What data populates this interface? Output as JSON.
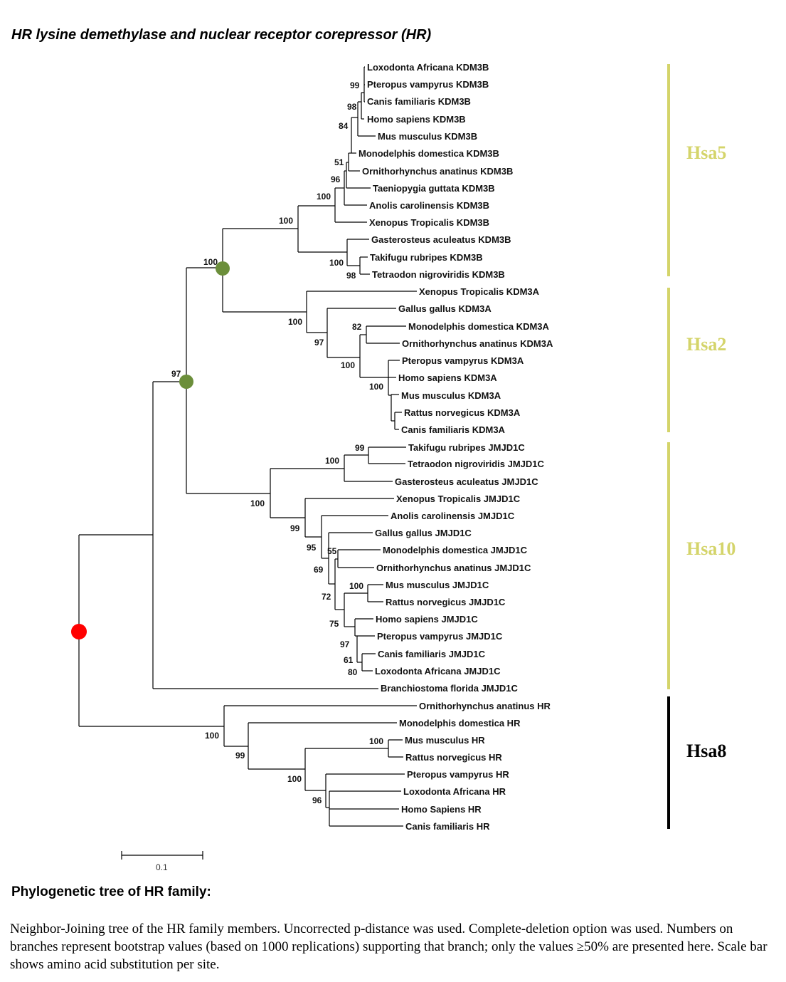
{
  "title": "HR lysine demethylase and nuclear receptor corepressor (HR)",
  "leaves": {
    "kdm3b_1": "Loxodonta Africana KDM3B",
    "kdm3b_2": "Pteropus vampyrus KDM3B",
    "kdm3b_3": "Canis familiaris KDM3B",
    "kdm3b_4": "Homo sapiens KDM3B",
    "kdm3b_5": "Mus musculus KDM3B",
    "kdm3b_6": "Monodelphis domestica KDM3B",
    "kdm3b_7": "Ornithorhynchus anatinus KDM3B",
    "kdm3b_8": "Taeniopygia guttata KDM3B",
    "kdm3b_9": "Anolis carolinensis KDM3B",
    "kdm3b_10": "Xenopus Tropicalis KDM3B",
    "kdm3b_11": "Gasterosteus aculeatus KDM3B",
    "kdm3b_12": "Takifugu rubripes KDM3B",
    "kdm3b_13": "Tetraodon nigroviridis KDM3B",
    "kdm3a_1": "Xenopus Tropicalis KDM3A",
    "kdm3a_2": "Gallus gallus KDM3A",
    "kdm3a_3": "Monodelphis domestica KDM3A",
    "kdm3a_4": "Ornithorhynchus anatinus KDM3A",
    "kdm3a_5": "Pteropus vampyrus KDM3A",
    "kdm3a_6": "Homo sapiens KDM3A",
    "kdm3a_7": "Mus musculus KDM3A",
    "kdm3a_8": "Rattus norvegicus KDM3A",
    "kdm3a_9": "Canis familiaris KDM3A",
    "jmjd1c_1": "Takifugu rubripes JMJD1C",
    "jmjd1c_2": "Tetraodon nigroviridis JMJD1C",
    "jmjd1c_3": "Gasterosteus aculeatus JMJD1C",
    "jmjd1c_4": "Xenopus Tropicalis JMJD1C",
    "jmjd1c_5": "Anolis carolinensis JMJD1C",
    "jmjd1c_6": "Gallus gallus JMJD1C",
    "jmjd1c_7": "Monodelphis domestica JMJD1C",
    "jmjd1c_8": "Ornithorhynchus anatinus JMJD1C",
    "jmjd1c_9": "Mus musculus JMJD1C",
    "jmjd1c_10": "Rattus norvegicus JMJD1C",
    "jmjd1c_11": "Homo sapiens JMJD1C",
    "jmjd1c_12": "Pteropus vampyrus JMJD1C",
    "jmjd1c_13": "Canis familiaris JMJD1C",
    "jmjd1c_14": "Loxodonta Africana JMJD1C",
    "jmjd1c_15": "Branchiostoma florida JMJD1C",
    "hr_1": "Ornithorhynchus anatinus HR",
    "hr_2": "Monodelphis domestica HR",
    "hr_3": "Mus musculus HR",
    "hr_4": "Rattus norvegicus HR",
    "hr_5": "Pteropus vampyrus HR",
    "hr_6": "Loxodonta Africana HR",
    "hr_7": "Homo Sapiens HR",
    "hr_8": "Canis familiaris HR"
  },
  "bootstrap": {
    "b1": "99",
    "b2": "98",
    "b3": "84",
    "b4": "51",
    "b5": "96",
    "b6": "100",
    "b7": "100",
    "b8": "100",
    "b9": "98",
    "b10": "100",
    "b11": "100",
    "b12": "97",
    "b13": "82",
    "b14": "100",
    "b15": "100",
    "b16": "97",
    "b17": "99",
    "b18": "100",
    "b19": "100",
    "b20": "99",
    "b21": "95",
    "b22": "55",
    "b23": "69",
    "b24": "100",
    "b25": "72",
    "b26": "75",
    "b27": "97",
    "b28": "61",
    "b29": "80",
    "b30": "100",
    "b31": "99",
    "b32": "100",
    "b33": "100",
    "b34": "96"
  },
  "groups": [
    {
      "label": "Hsa5",
      "color": "#d4d46a"
    },
    {
      "label": "Hsa2",
      "color": "#d4d46a"
    },
    {
      "label": "Hsa10",
      "color": "#d4d46a"
    },
    {
      "label": "Hsa8",
      "color": "#000000"
    }
  ],
  "node_markers": {
    "green": "#6b8e3a",
    "red": "#ff0000"
  },
  "scale_bar": {
    "label": "0.1"
  },
  "caption": {
    "heading": "Phylogenetic tree of HR family:",
    "text": "Neighbor-Joining tree of the HR family members. Uncorrected p-distance was used. Complete-deletion option was used. Numbers on branches represent bootstrap values (based on 1000 replications) supporting that branch; only the values ≥50% are presented here. Scale bar shows amino acid substitution per site."
  }
}
